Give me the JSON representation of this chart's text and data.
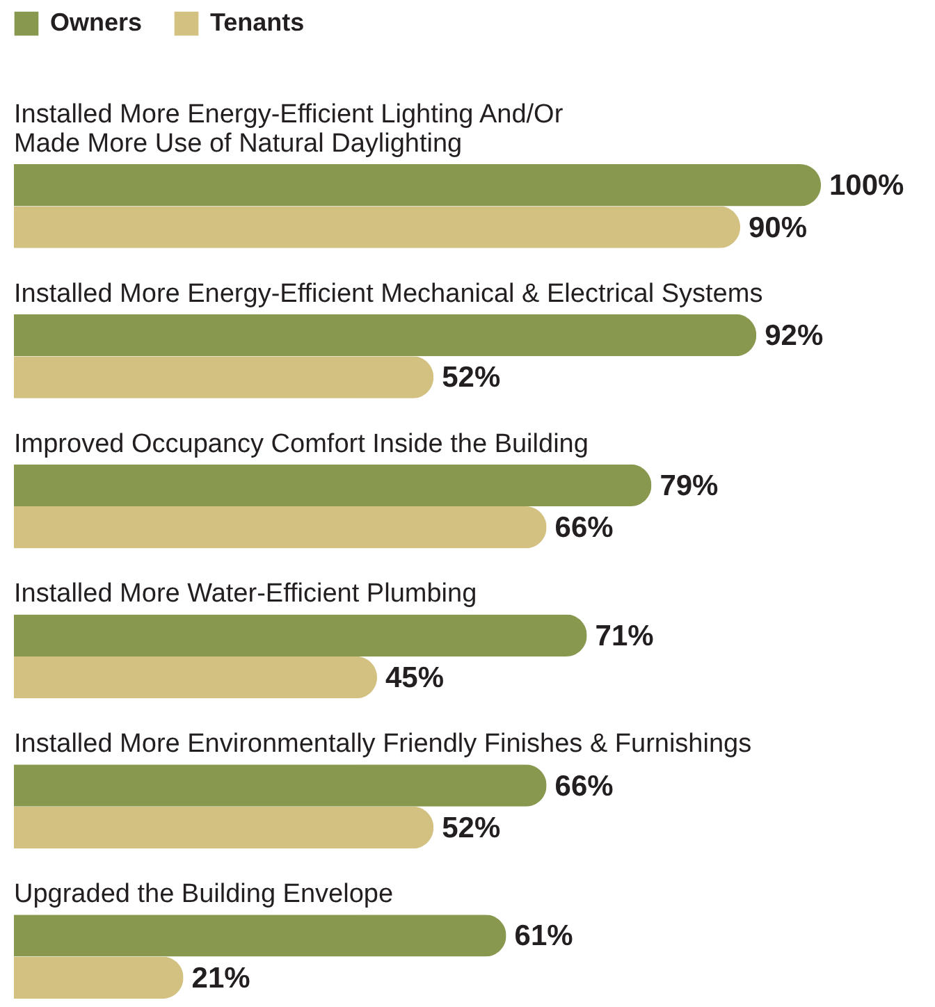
{
  "chart_data": {
    "type": "bar",
    "orientation": "horizontal",
    "legend": "top left",
    "categories": [
      "Installed More Energy-Efficient Lighting And/Or\nMade More Use of Natural Daylighting",
      "Installed More Energy-Efficient Mechanical & Electrical Systems",
      "Improved Occupancy Comfort Inside the Building",
      "Installed More Water-Efficient Plumbing",
      "Installed More Environmentally Friendly Finishes & Furnishings",
      "Upgraded the Building Envelope"
    ],
    "series": [
      {
        "name": "Owners",
        "color": "#88984f",
        "values": [
          100,
          92,
          79,
          71,
          66,
          61
        ],
        "value_labels": [
          "100%",
          "92%",
          "79%",
          "71%",
          "66%",
          "61%"
        ]
      },
      {
        "name": "Tenants",
        "color": "#d3c182",
        "values": [
          90,
          52,
          66,
          45,
          52,
          21
        ],
        "value_labels": [
          "90%",
          "52%",
          "66%",
          "45%",
          "52%",
          "21%"
        ]
      }
    ]
  }
}
